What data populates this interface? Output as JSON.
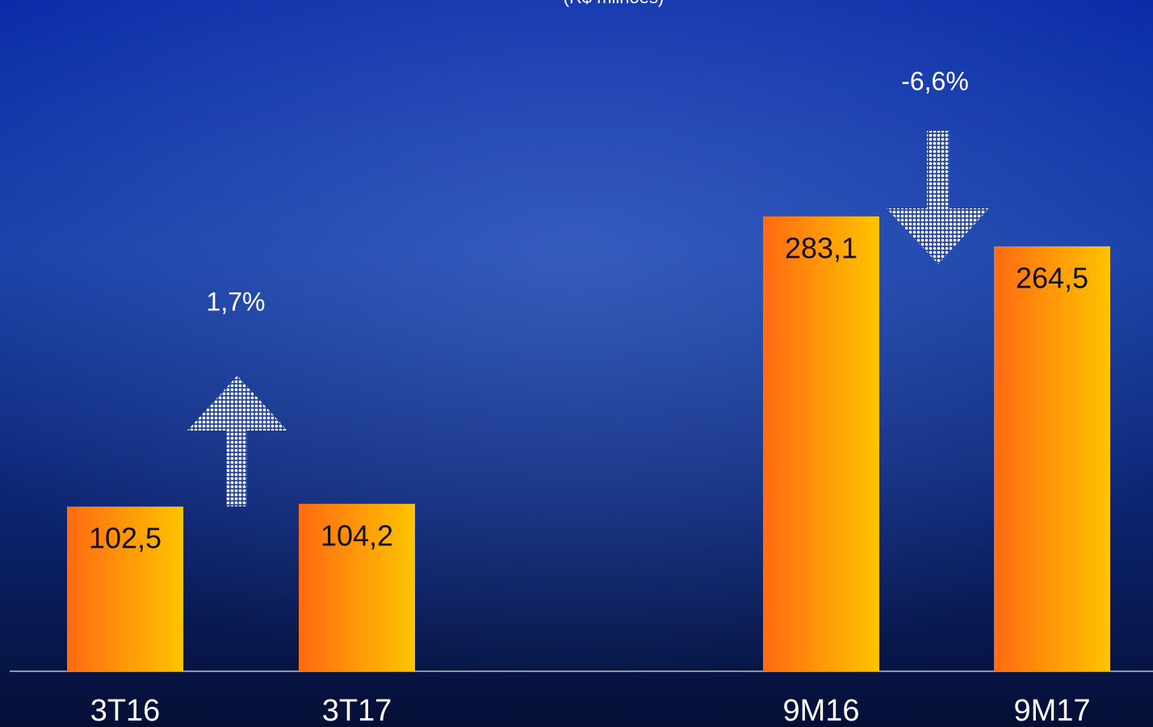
{
  "chart_data": {
    "type": "bar",
    "subtitle": "(R$ milhões)",
    "categories": [
      "3T16",
      "3T17",
      "9M16",
      "9M17"
    ],
    "values": [
      102.5,
      104.2,
      283.1,
      264.5
    ],
    "value_labels": [
      "102,5",
      "104,2",
      "283,1",
      "264,5"
    ],
    "annotations": [
      "1,7%",
      "-6,6%"
    ]
  }
}
